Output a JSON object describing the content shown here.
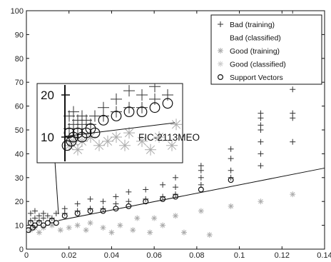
{
  "chart_data": {
    "type": "scatter",
    "xlim": [
      0,
      0.14
    ],
    "ylim": [
      0,
      100
    ],
    "x_ticks": [
      0,
      0.02,
      0.04,
      0.06,
      0.08,
      0.1,
      0.12,
      0.14
    ],
    "x_tick_labels": [
      "0",
      "0.02",
      "0.04",
      "0.06",
      "0.08",
      "0.1",
      "0.12",
      "0.14"
    ],
    "y_ticks": [
      0,
      10,
      20,
      30,
      40,
      50,
      60,
      70,
      80,
      90,
      100
    ],
    "y_tick_labels": [
      "0",
      "10",
      "20",
      "30",
      "40",
      "50",
      "60",
      "70",
      "80",
      "90",
      "100"
    ],
    "grid": false,
    "legend_position": "top-right",
    "series": [
      {
        "name": "Bad (training)",
        "marker": "plus",
        "color": "#333333",
        "points": [
          [
            0.002,
            12
          ],
          [
            0.002,
            15
          ],
          [
            0.004,
            13
          ],
          [
            0.004,
            16
          ],
          [
            0.006,
            12
          ],
          [
            0.006,
            14
          ],
          [
            0.008,
            13
          ],
          [
            0.008,
            15
          ],
          [
            0.01,
            14
          ],
          [
            0.012,
            13
          ],
          [
            0.014,
            15
          ],
          [
            0.018,
            15
          ],
          [
            0.018,
            17
          ],
          [
            0.024,
            16
          ],
          [
            0.024,
            19
          ],
          [
            0.03,
            17
          ],
          [
            0.03,
            21
          ],
          [
            0.036,
            17
          ],
          [
            0.036,
            20
          ],
          [
            0.042,
            19
          ],
          [
            0.042,
            22
          ],
          [
            0.048,
            20
          ],
          [
            0.048,
            24
          ],
          [
            0.056,
            21
          ],
          [
            0.056,
            25
          ],
          [
            0.064,
            22
          ],
          [
            0.064,
            27
          ],
          [
            0.07,
            23
          ],
          [
            0.07,
            26
          ],
          [
            0.07,
            30
          ],
          [
            0.082,
            27
          ],
          [
            0.082,
            30
          ],
          [
            0.082,
            33
          ],
          [
            0.082,
            35
          ],
          [
            0.096,
            30
          ],
          [
            0.096,
            33
          ],
          [
            0.096,
            38
          ],
          [
            0.096,
            42
          ],
          [
            0.11,
            35
          ],
          [
            0.11,
            40
          ],
          [
            0.11,
            45
          ],
          [
            0.11,
            50
          ],
          [
            0.11,
            52
          ],
          [
            0.11,
            55
          ],
          [
            0.11,
            57
          ],
          [
            0.125,
            45
          ],
          [
            0.125,
            55
          ],
          [
            0.125,
            57
          ],
          [
            0.125,
            67
          ],
          [
            0.125,
            100
          ]
        ]
      },
      {
        "name": "Bad (classified)",
        "marker": "plus",
        "color": "#ffffff",
        "points": []
      },
      {
        "name": "Good (training)",
        "marker": "asterisk",
        "color": "#aaaaaa",
        "points": [
          [
            0.002,
            8
          ],
          [
            0.004,
            9
          ],
          [
            0.006,
            7
          ],
          [
            0.008,
            9
          ],
          [
            0.012,
            10
          ],
          [
            0.016,
            8
          ],
          [
            0.02,
            9
          ],
          [
            0.024,
            10
          ],
          [
            0.028,
            8
          ],
          [
            0.03,
            11
          ],
          [
            0.036,
            9
          ],
          [
            0.04,
            7
          ],
          [
            0.044,
            10
          ],
          [
            0.05,
            8
          ],
          [
            0.052,
            13
          ],
          [
            0.058,
            7
          ],
          [
            0.06,
            13
          ],
          [
            0.064,
            10
          ],
          [
            0.07,
            14
          ],
          [
            0.074,
            7
          ],
          [
            0.082,
            16
          ],
          [
            0.086,
            6
          ],
          [
            0.096,
            18
          ],
          [
            0.11,
            20
          ],
          [
            0.125,
            23
          ]
        ]
      },
      {
        "name": "Good (classified)",
        "marker": "asterisk",
        "color": "#cccccc",
        "points": []
      },
      {
        "name": "Support Vectors",
        "marker": "circle",
        "color": "#111111",
        "points": [
          [
            0.001,
            8
          ],
          [
            0.002,
            11
          ],
          [
            0.003,
            9
          ],
          [
            0.004,
            10
          ],
          [
            0.006,
            11
          ],
          [
            0.008,
            10
          ],
          [
            0.01,
            11
          ],
          [
            0.012,
            12
          ],
          [
            0.014,
            11
          ],
          [
            0.018,
            14
          ],
          [
            0.024,
            15
          ],
          [
            0.03,
            16
          ],
          [
            0.036,
            16
          ],
          [
            0.042,
            17
          ],
          [
            0.048,
            18
          ],
          [
            0.056,
            20
          ],
          [
            0.064,
            21
          ],
          [
            0.07,
            22
          ],
          [
            0.082,
            25
          ],
          [
            0.096,
            29
          ]
        ]
      }
    ],
    "decision_line": [
      [
        0.015,
        12
      ],
      [
        0.14,
        34
      ]
    ],
    "inset": {
      "y_tick_labels": [
        "20",
        "10"
      ],
      "annotation": "FIC-2113MEO"
    }
  }
}
